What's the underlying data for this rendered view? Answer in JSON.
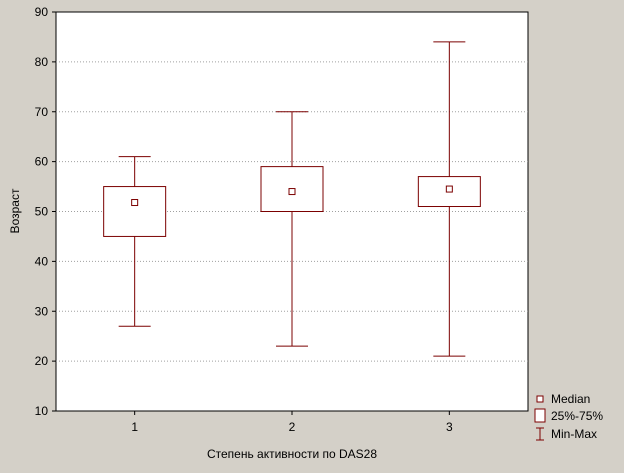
{
  "chart_data": {
    "type": "boxplot",
    "title": "",
    "xlabel": "Степень активности по DAS28",
    "ylabel": "Возраст",
    "ylim": [
      10,
      90
    ],
    "yticks": [
      10,
      20,
      30,
      40,
      50,
      60,
      70,
      80,
      90
    ],
    "grid": true,
    "legend_position": "bottom-right",
    "categories": [
      "1",
      "2",
      "3"
    ],
    "series": [
      {
        "category": "1",
        "median": 51.8,
        "q1": 45,
        "q3": 55,
        "min": 27,
        "max": 61
      },
      {
        "category": "2",
        "median": 54,
        "q1": 50,
        "q3": 59,
        "min": 23,
        "max": 70
      },
      {
        "category": "3",
        "median": 54.5,
        "q1": 51,
        "q3": 57,
        "min": 21,
        "max": 84
      }
    ],
    "legend": [
      {
        "key": "median",
        "label": "Median"
      },
      {
        "key": "box",
        "label": "25%-75%"
      },
      {
        "key": "whisker",
        "label": "Min-Max"
      }
    ],
    "colors": {
      "box": "#7b0000",
      "background": "#d4d0c8",
      "plot_bg": "#ffffff",
      "grid": "#a0a0a0"
    }
  }
}
